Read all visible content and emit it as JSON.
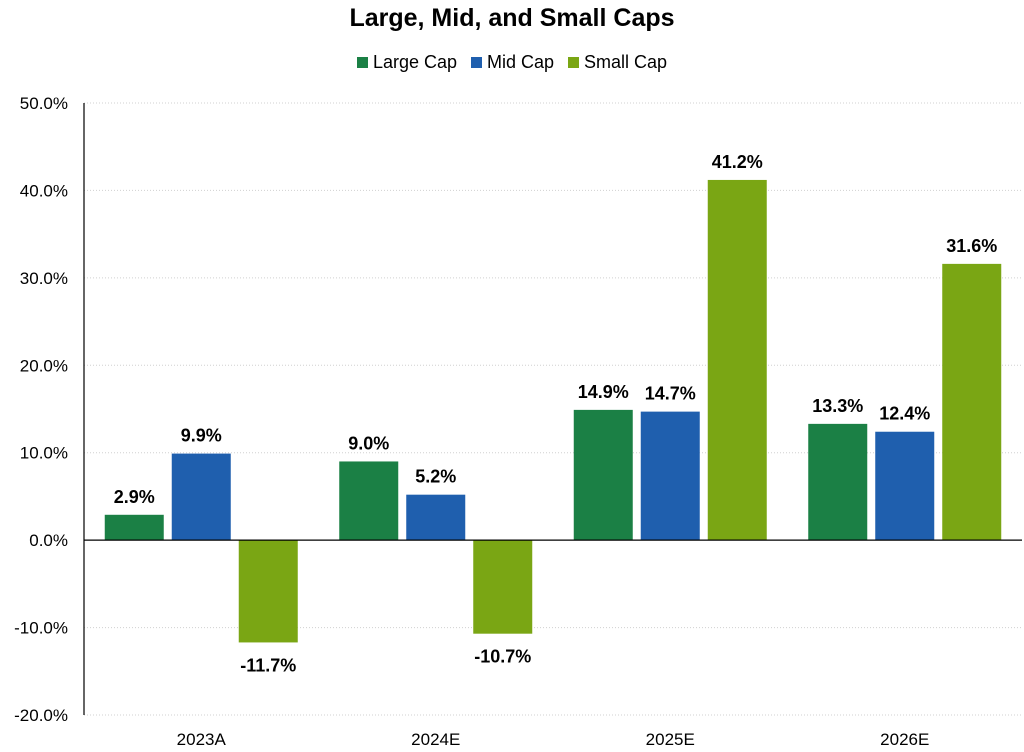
{
  "chart_data": {
    "type": "bar",
    "title": "Large, Mid, and Small Caps",
    "categories": [
      "2023A",
      "2024E",
      "2025E",
      "2026E"
    ],
    "series": [
      {
        "name": "Large Cap",
        "color": "#1b8045",
        "values": [
          2.9,
          9.0,
          14.9,
          13.3
        ],
        "labels": [
          "2.9%",
          "9.0%",
          "14.9%",
          "13.3%"
        ]
      },
      {
        "name": "Mid Cap",
        "color": "#1f5fae",
        "values": [
          9.9,
          5.2,
          14.7,
          12.4
        ],
        "labels": [
          "9.9%",
          "5.2%",
          "14.7%",
          "12.4%"
        ]
      },
      {
        "name": "Small Cap",
        "color": "#7aa614",
        "values": [
          -11.7,
          -10.7,
          41.2,
          31.6
        ],
        "labels": [
          "-11.7%",
          "-10.7%",
          "41.2%",
          "31.6%"
        ]
      }
    ],
    "ylim": [
      -20,
      50
    ],
    "yticks": [
      -20,
      -10,
      0,
      10,
      20,
      30,
      40,
      50
    ],
    "ytick_labels": [
      "-20.0%",
      "-10.0%",
      "0.0%",
      "10.0%",
      "20.0%",
      "30.0%",
      "40.0%",
      "50.0%"
    ],
    "xlabel": "",
    "ylabel": "",
    "grid": true,
    "legend_position": "top-center"
  }
}
